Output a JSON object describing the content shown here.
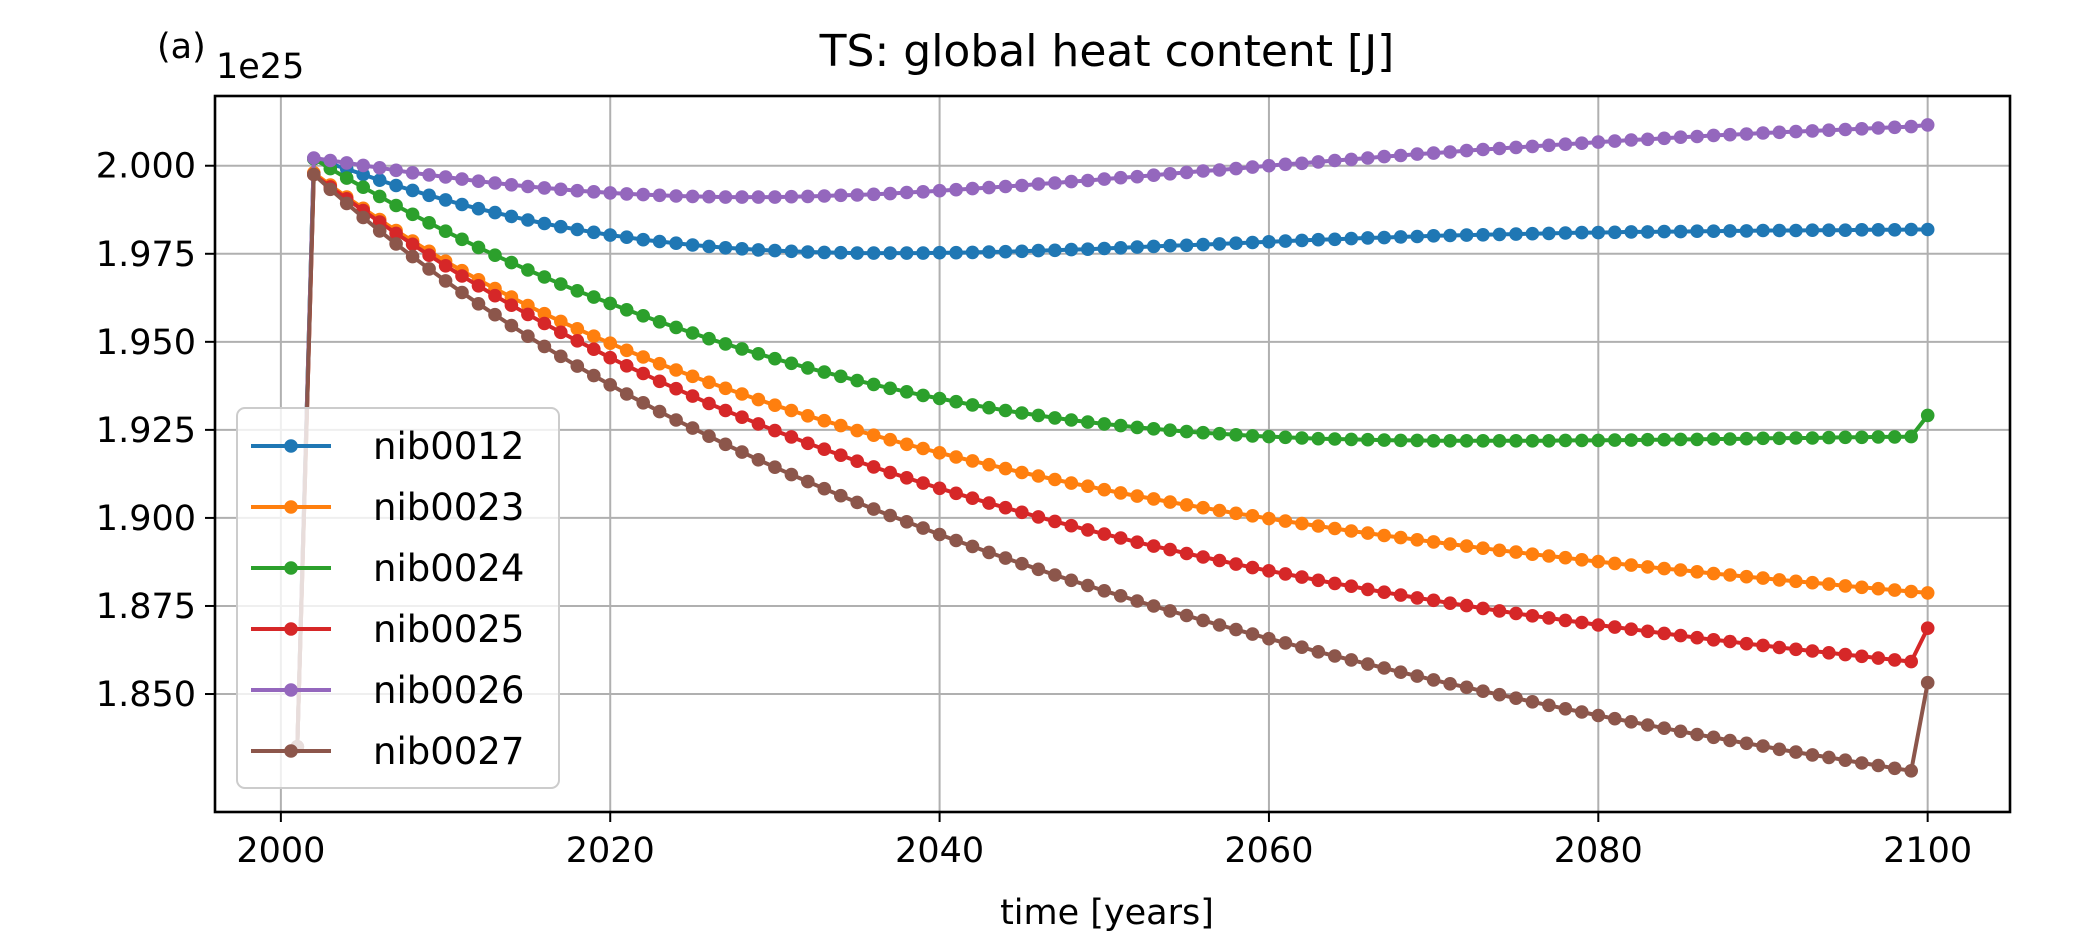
{
  "chart_data": {
    "type": "line",
    "panel_label": "(a)",
    "title": "TS: global heat content [J]",
    "xlabel": "time [years]",
    "ylabel": "",
    "y_offset_label": "1e25",
    "xlim": [
      1996,
      2105
    ],
    "ylim": [
      1.8165,
      2.0198
    ],
    "x_ticks": [
      2000,
      2020,
      2040,
      2060,
      2080,
      2100
    ],
    "x_tick_labels": [
      "2000",
      "2020",
      "2040",
      "2060",
      "2080",
      "2100"
    ],
    "y_ticks": [
      1.85,
      1.875,
      1.9,
      1.925,
      1.95,
      1.975,
      2.0
    ],
    "y_tick_labels": [
      "1.850",
      "1.875",
      "1.900",
      "1.925",
      "1.950",
      "1.975",
      "2.000"
    ],
    "grid": true,
    "legend_position": "lower-left",
    "marker": "circle",
    "x": [
      2001,
      2002,
      2003,
      2004,
      2005,
      2006,
      2007,
      2008,
      2009,
      2010,
      2011,
      2012,
      2013,
      2014,
      2015,
      2016,
      2017,
      2018,
      2019,
      2020,
      2021,
      2022,
      2023,
      2024,
      2025,
      2026,
      2027,
      2028,
      2029,
      2030,
      2031,
      2032,
      2033,
      2034,
      2035,
      2036,
      2037,
      2038,
      2039,
      2040,
      2041,
      2042,
      2043,
      2044,
      2045,
      2046,
      2047,
      2048,
      2049,
      2050,
      2051,
      2052,
      2053,
      2054,
      2055,
      2056,
      2057,
      2058,
      2059,
      2060,
      2061,
      2062,
      2063,
      2064,
      2065,
      2066,
      2067,
      2068,
      2069,
      2070,
      2071,
      2072,
      2073,
      2074,
      2075,
      2076,
      2077,
      2078,
      2079,
      2080,
      2081,
      2082,
      2083,
      2084,
      2085,
      2086,
      2087,
      2088,
      2089,
      2090,
      2091,
      2092,
      2093,
      2094,
      2095,
      2096,
      2097,
      2098,
      2099,
      2100
    ],
    "series": [
      {
        "name": "nib0012",
        "color": "#1f77b4",
        "values": [
          1.835,
          2.002,
          2.0006,
          1.9991,
          1.9975,
          1.9959,
          1.9944,
          1.993,
          1.9916,
          1.9903,
          1.989,
          1.9878,
          1.9867,
          1.9856,
          1.9846,
          1.9836,
          1.9827,
          1.9819,
          1.9811,
          1.9803,
          1.9797,
          1.979,
          1.9785,
          1.978,
          1.9775,
          1.9771,
          1.9767,
          1.9764,
          1.9761,
          1.9759,
          1.9757,
          1.9755,
          1.9754,
          1.9753,
          1.9752,
          1.9752,
          1.9752,
          1.9752,
          1.9752,
          1.9753,
          1.9753,
          1.9754,
          1.9755,
          1.9756,
          1.9757,
          1.9759,
          1.976,
          1.9762,
          1.9763,
          1.9765,
          1.9767,
          1.9769,
          1.9771,
          1.9773,
          1.9774,
          1.9776,
          1.9778,
          1.978,
          1.9782,
          1.9784,
          1.9786,
          1.9788,
          1.979,
          1.9791,
          1.9793,
          1.9795,
          1.9796,
          1.9798,
          1.9799,
          1.9801,
          1.9802,
          1.9803,
          1.9804,
          1.9805,
          1.9806,
          1.9807,
          1.9808,
          1.9809,
          1.981,
          1.981,
          1.9811,
          1.9812,
          1.9812,
          1.9813,
          1.9813,
          1.9814,
          1.9814,
          1.9815,
          1.9815,
          1.9816,
          1.9816,
          1.9816,
          1.9817,
          1.9817,
          1.9817,
          1.9818,
          1.9818,
          1.9818,
          1.9819,
          1.9819
        ]
      },
      {
        "name": "nib0023",
        "color": "#ff7f0e",
        "values": [
          1.835,
          1.998,
          1.9945,
          1.9911,
          1.9879,
          1.9847,
          1.9816,
          1.9786,
          1.9757,
          1.9729,
          1.9702,
          1.9676,
          1.9651,
          1.9627,
          1.9603,
          1.958,
          1.9558,
          1.9537,
          1.9516,
          1.9496,
          1.9476,
          1.9457,
          1.9438,
          1.942,
          1.9402,
          1.9385,
          1.9368,
          1.9352,
          1.9336,
          1.932,
          1.9305,
          1.929,
          1.9276,
          1.9262,
          1.9248,
          1.9235,
          1.9222,
          1.9209,
          1.9197,
          1.9185,
          1.9173,
          1.9162,
          1.9151,
          1.914,
          1.9129,
          1.9119,
          1.9109,
          1.9099,
          1.909,
          1.908,
          1.9071,
          1.9062,
          1.9054,
          1.9045,
          1.9037,
          1.9029,
          1.9021,
          1.9013,
          1.9006,
          1.8998,
          1.8991,
          1.8984,
          1.8977,
          1.897,
          1.8963,
          1.8957,
          1.895,
          1.8944,
          1.8938,
          1.8932,
          1.8926,
          1.892,
          1.8914,
          1.8908,
          1.8903,
          1.8897,
          1.8892,
          1.8887,
          1.8881,
          1.8876,
          1.8871,
          1.8866,
          1.8861,
          1.8856,
          1.8852,
          1.8847,
          1.8842,
          1.8838,
          1.8833,
          1.8829,
          1.8824,
          1.882,
          1.8816,
          1.8812,
          1.8807,
          1.8803,
          1.8799,
          1.8795,
          1.8791,
          1.8787
        ]
      },
      {
        "name": "nib0024",
        "color": "#2ca02c",
        "values": [
          1.835,
          2.002,
          1.9992,
          1.9965,
          1.9939,
          1.9913,
          1.9887,
          1.9862,
          1.9838,
          1.9814,
          1.9791,
          1.9768,
          1.9746,
          1.9725,
          1.9704,
          1.9684,
          1.9664,
          1.9645,
          1.9627,
          1.9609,
          1.9591,
          1.9574,
          1.9557,
          1.9541,
          1.9525,
          1.9509,
          1.9494,
          1.948,
          1.9466,
          1.9452,
          1.9439,
          1.9426,
          1.9414,
          1.9402,
          1.939,
          1.9379,
          1.9368,
          1.9358,
          1.9348,
          1.9339,
          1.933,
          1.9321,
          1.9313,
          1.9305,
          1.9298,
          1.9291,
          1.9284,
          1.9278,
          1.9272,
          1.9267,
          1.9262,
          1.9257,
          1.9253,
          1.9249,
          1.9245,
          1.9242,
          1.9239,
          1.9236,
          1.9233,
          1.9231,
          1.9229,
          1.9227,
          1.9225,
          1.9224,
          1.9223,
          1.9222,
          1.9221,
          1.922,
          1.922,
          1.9219,
          1.9219,
          1.9219,
          1.9219,
          1.9219,
          1.9219,
          1.9219,
          1.9219,
          1.922,
          1.922,
          1.922,
          1.9221,
          1.9221,
          1.9222,
          1.9222,
          1.9223,
          1.9223,
          1.9224,
          1.9224,
          1.9225,
          1.9226,
          1.9226,
          1.9227,
          1.9227,
          1.9228,
          1.9229,
          1.9229,
          1.923,
          1.923,
          1.9231,
          1.9291
        ]
      },
      {
        "name": "nib0025",
        "color": "#d62728",
        "values": [
          1.835,
          1.9975,
          1.994,
          1.9906,
          1.9873,
          1.984,
          1.9808,
          1.9777,
          1.9746,
          1.9716,
          1.9687,
          1.9659,
          1.9631,
          1.9604,
          1.9578,
          1.9552,
          1.9527,
          1.9503,
          1.9479,
          1.9455,
          1.9432,
          1.941,
          1.9388,
          1.9367,
          1.9346,
          1.9325,
          1.9305,
          1.9286,
          1.9267,
          1.9248,
          1.923,
          1.9212,
          1.9195,
          1.9178,
          1.9161,
          1.9145,
          1.9129,
          1.9114,
          1.9099,
          1.9084,
          1.907,
          1.9056,
          1.9042,
          1.9029,
          1.9016,
          1.9003,
          1.899,
          1.8978,
          1.8966,
          1.8954,
          1.8943,
          1.8931,
          1.892,
          1.891,
          1.8899,
          1.8889,
          1.8879,
          1.8869,
          1.8859,
          1.885,
          1.8841,
          1.8832,
          1.8823,
          1.8814,
          1.8806,
          1.8797,
          1.8789,
          1.8781,
          1.8773,
          1.8766,
          1.8758,
          1.8751,
          1.8743,
          1.8736,
          1.8729,
          1.8722,
          1.8716,
          1.8709,
          1.8703,
          1.8696,
          1.869,
          1.8684,
          1.8678,
          1.8672,
          1.8666,
          1.866,
          1.8654,
          1.8649,
          1.8643,
          1.8638,
          1.8632,
          1.8627,
          1.8622,
          1.8617,
          1.8612,
          1.8607,
          1.8602,
          1.8597,
          1.8592,
          1.8687
        ]
      },
      {
        "name": "nib0026",
        "color": "#9467bd",
        "values": [
          1.835,
          2.0022,
          2.0015,
          2.0008,
          2.0001,
          1.9994,
          1.9987,
          1.998,
          1.9974,
          1.9968,
          1.9962,
          1.9956,
          1.9951,
          1.9946,
          1.9941,
          1.9937,
          1.9933,
          1.9929,
          1.9926,
          1.9923,
          1.992,
          1.9918,
          1.9916,
          1.9914,
          1.9913,
          1.9912,
          1.9911,
          1.9911,
          1.9911,
          1.9911,
          1.9912,
          1.9913,
          1.9914,
          1.9916,
          1.9917,
          1.9919,
          1.9921,
          1.9924,
          1.9926,
          1.9929,
          1.9932,
          1.9935,
          1.9938,
          1.9941,
          1.9944,
          1.9948,
          1.9951,
          1.9955,
          1.9958,
          1.9962,
          1.9966,
          1.9969,
          1.9973,
          1.9977,
          1.9981,
          1.9985,
          1.9988,
          1.9992,
          1.9996,
          2.0,
          2.0004,
          2.0007,
          2.0011,
          2.0015,
          2.0018,
          2.0022,
          2.0026,
          2.0029,
          2.0033,
          2.0036,
          2.0039,
          2.0043,
          2.0046,
          2.0049,
          2.0052,
          2.0055,
          2.0058,
          2.0061,
          2.0064,
          2.0067,
          2.007,
          2.0073,
          2.0075,
          2.0078,
          2.0081,
          2.0083,
          2.0086,
          2.0088,
          2.009,
          2.0093,
          2.0095,
          2.0097,
          2.0099,
          2.0101,
          2.0103,
          2.0105,
          2.0107,
          2.0109,
          2.0111,
          2.0116
        ]
      },
      {
        "name": "nib0027",
        "color": "#8c564b",
        "values": [
          1.835,
          1.9975,
          1.9933,
          1.9893,
          1.9853,
          1.9815,
          1.9778,
          1.9742,
          1.9707,
          1.9673,
          1.964,
          1.9608,
          1.9577,
          1.9546,
          1.9516,
          1.9487,
          1.9459,
          1.9431,
          1.9404,
          1.9378,
          1.9352,
          1.9327,
          1.9302,
          1.9278,
          1.9255,
          1.9232,
          1.9209,
          1.9187,
          1.9165,
          1.9144,
          1.9123,
          1.9103,
          1.9083,
          1.9063,
          1.9044,
          1.9025,
          1.9007,
          1.8989,
          1.8971,
          1.8953,
          1.8936,
          1.8919,
          1.8902,
          1.8886,
          1.887,
          1.8854,
          1.8838,
          1.8823,
          1.8808,
          1.8793,
          1.8779,
          1.8764,
          1.875,
          1.8736,
          1.8723,
          1.8709,
          1.8696,
          1.8683,
          1.867,
          1.8657,
          1.8645,
          1.8633,
          1.862,
          1.8608,
          1.8597,
          1.8585,
          1.8574,
          1.8562,
          1.8551,
          1.854,
          1.8529,
          1.8519,
          1.8508,
          1.8498,
          1.8488,
          1.8478,
          1.8468,
          1.8458,
          1.8449,
          1.8439,
          1.843,
          1.8421,
          1.8412,
          1.8403,
          1.8394,
          1.8385,
          1.8377,
          1.8368,
          1.836,
          1.8352,
          1.8343,
          1.8335,
          1.8327,
          1.832,
          1.8312,
          1.8304,
          1.8297,
          1.8289,
          1.8282,
          1.8532
        ]
      }
    ]
  }
}
